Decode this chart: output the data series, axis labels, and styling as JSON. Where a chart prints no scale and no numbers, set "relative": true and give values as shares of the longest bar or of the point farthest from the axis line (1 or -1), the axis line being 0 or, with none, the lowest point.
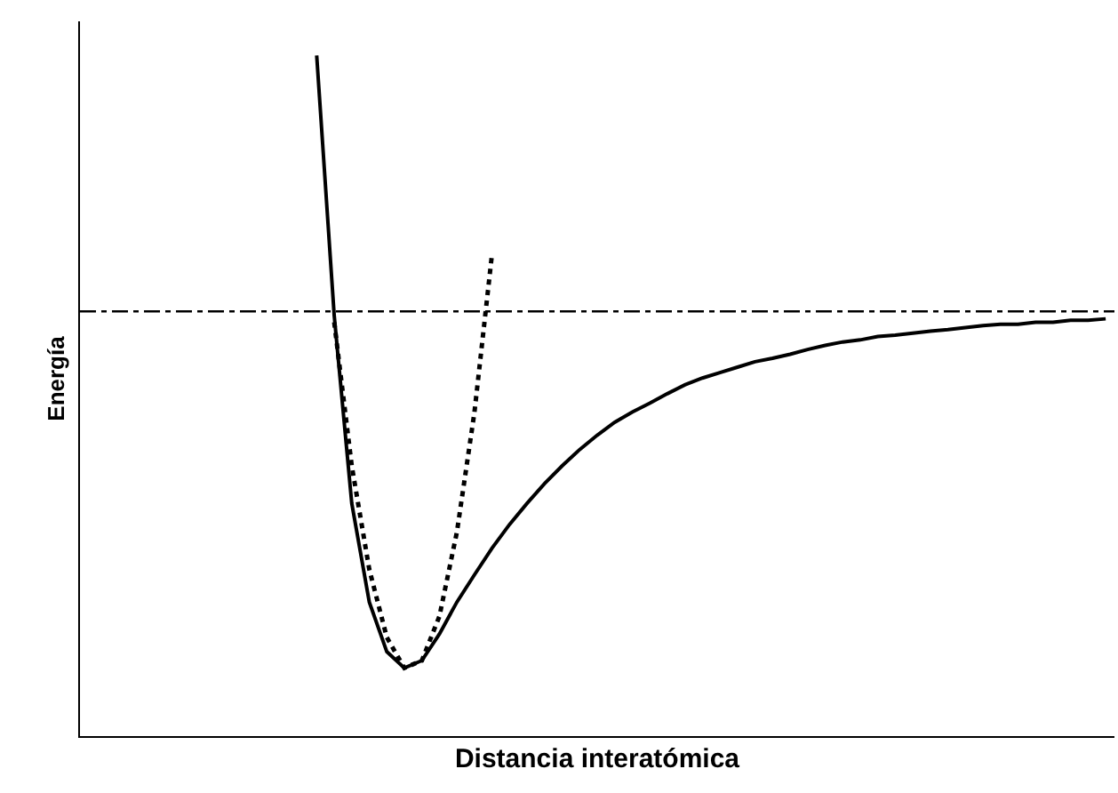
{
  "chart_data": {
    "type": "line",
    "relative": true,
    "xlabel": "Distancia interatómica",
    "ylabel": "Energía",
    "categories": [
      null,
      null,
      null,
      null,
      null,
      null,
      null,
      null,
      null,
      null,
      null,
      null,
      null,
      null,
      null,
      null,
      null,
      null,
      null,
      null,
      null,
      null,
      null,
      null,
      null,
      null,
      null,
      null,
      null,
      null,
      null,
      null,
      null,
      null,
      null,
      null,
      null,
      null,
      null,
      null,
      null,
      null,
      null,
      null,
      null,
      null,
      null,
      null,
      null,
      null,
      null,
      null,
      null,
      null,
      null,
      null,
      null,
      null,
      null
    ],
    "series": [
      {
        "color": "#000000",
        "line_style": "solid",
        "values": [
          null,
          null,
          null,
          null,
          null,
          null,
          null,
          null,
          null,
          null,
          null,
          null,
          null,
          1.0,
          0.618,
          0.342,
          0.197,
          0.124,
          0.1,
          0.111,
          0.15,
          0.197,
          0.237,
          0.276,
          0.311,
          0.342,
          0.371,
          0.397,
          0.421,
          0.442,
          0.461,
          0.476,
          0.489,
          0.503,
          0.516,
          0.526,
          0.534,
          0.542,
          0.55,
          0.555,
          0.561,
          0.568,
          0.574,
          0.579,
          0.582,
          0.587,
          0.589,
          0.592,
          0.595,
          0.597,
          0.6,
          0.603,
          0.605,
          0.605,
          0.608,
          0.608,
          0.611,
          0.611,
          0.613
        ]
      },
      {
        "color": "#000000",
        "line_style": "dotted",
        "values": [
          null,
          null,
          null,
          null,
          null,
          null,
          null,
          null,
          null,
          null,
          null,
          null,
          null,
          null,
          0.608,
          0.397,
          0.245,
          0.145,
          0.1,
          0.111,
          0.176,
          0.3,
          0.476,
          0.708,
          null,
          null,
          null,
          null,
          null,
          null,
          null,
          null,
          null,
          null,
          null,
          null,
          null,
          null,
          null,
          null,
          null,
          null,
          null,
          null,
          null,
          null,
          null,
          null,
          null,
          null,
          null,
          null,
          null,
          null,
          null,
          null,
          null,
          null,
          null
        ]
      }
    ],
    "ref_lines": [
      {
        "axis": "y",
        "value": 0.624,
        "color": "#000000",
        "line_style": "dashed"
      }
    ],
    "marker": "none"
  }
}
